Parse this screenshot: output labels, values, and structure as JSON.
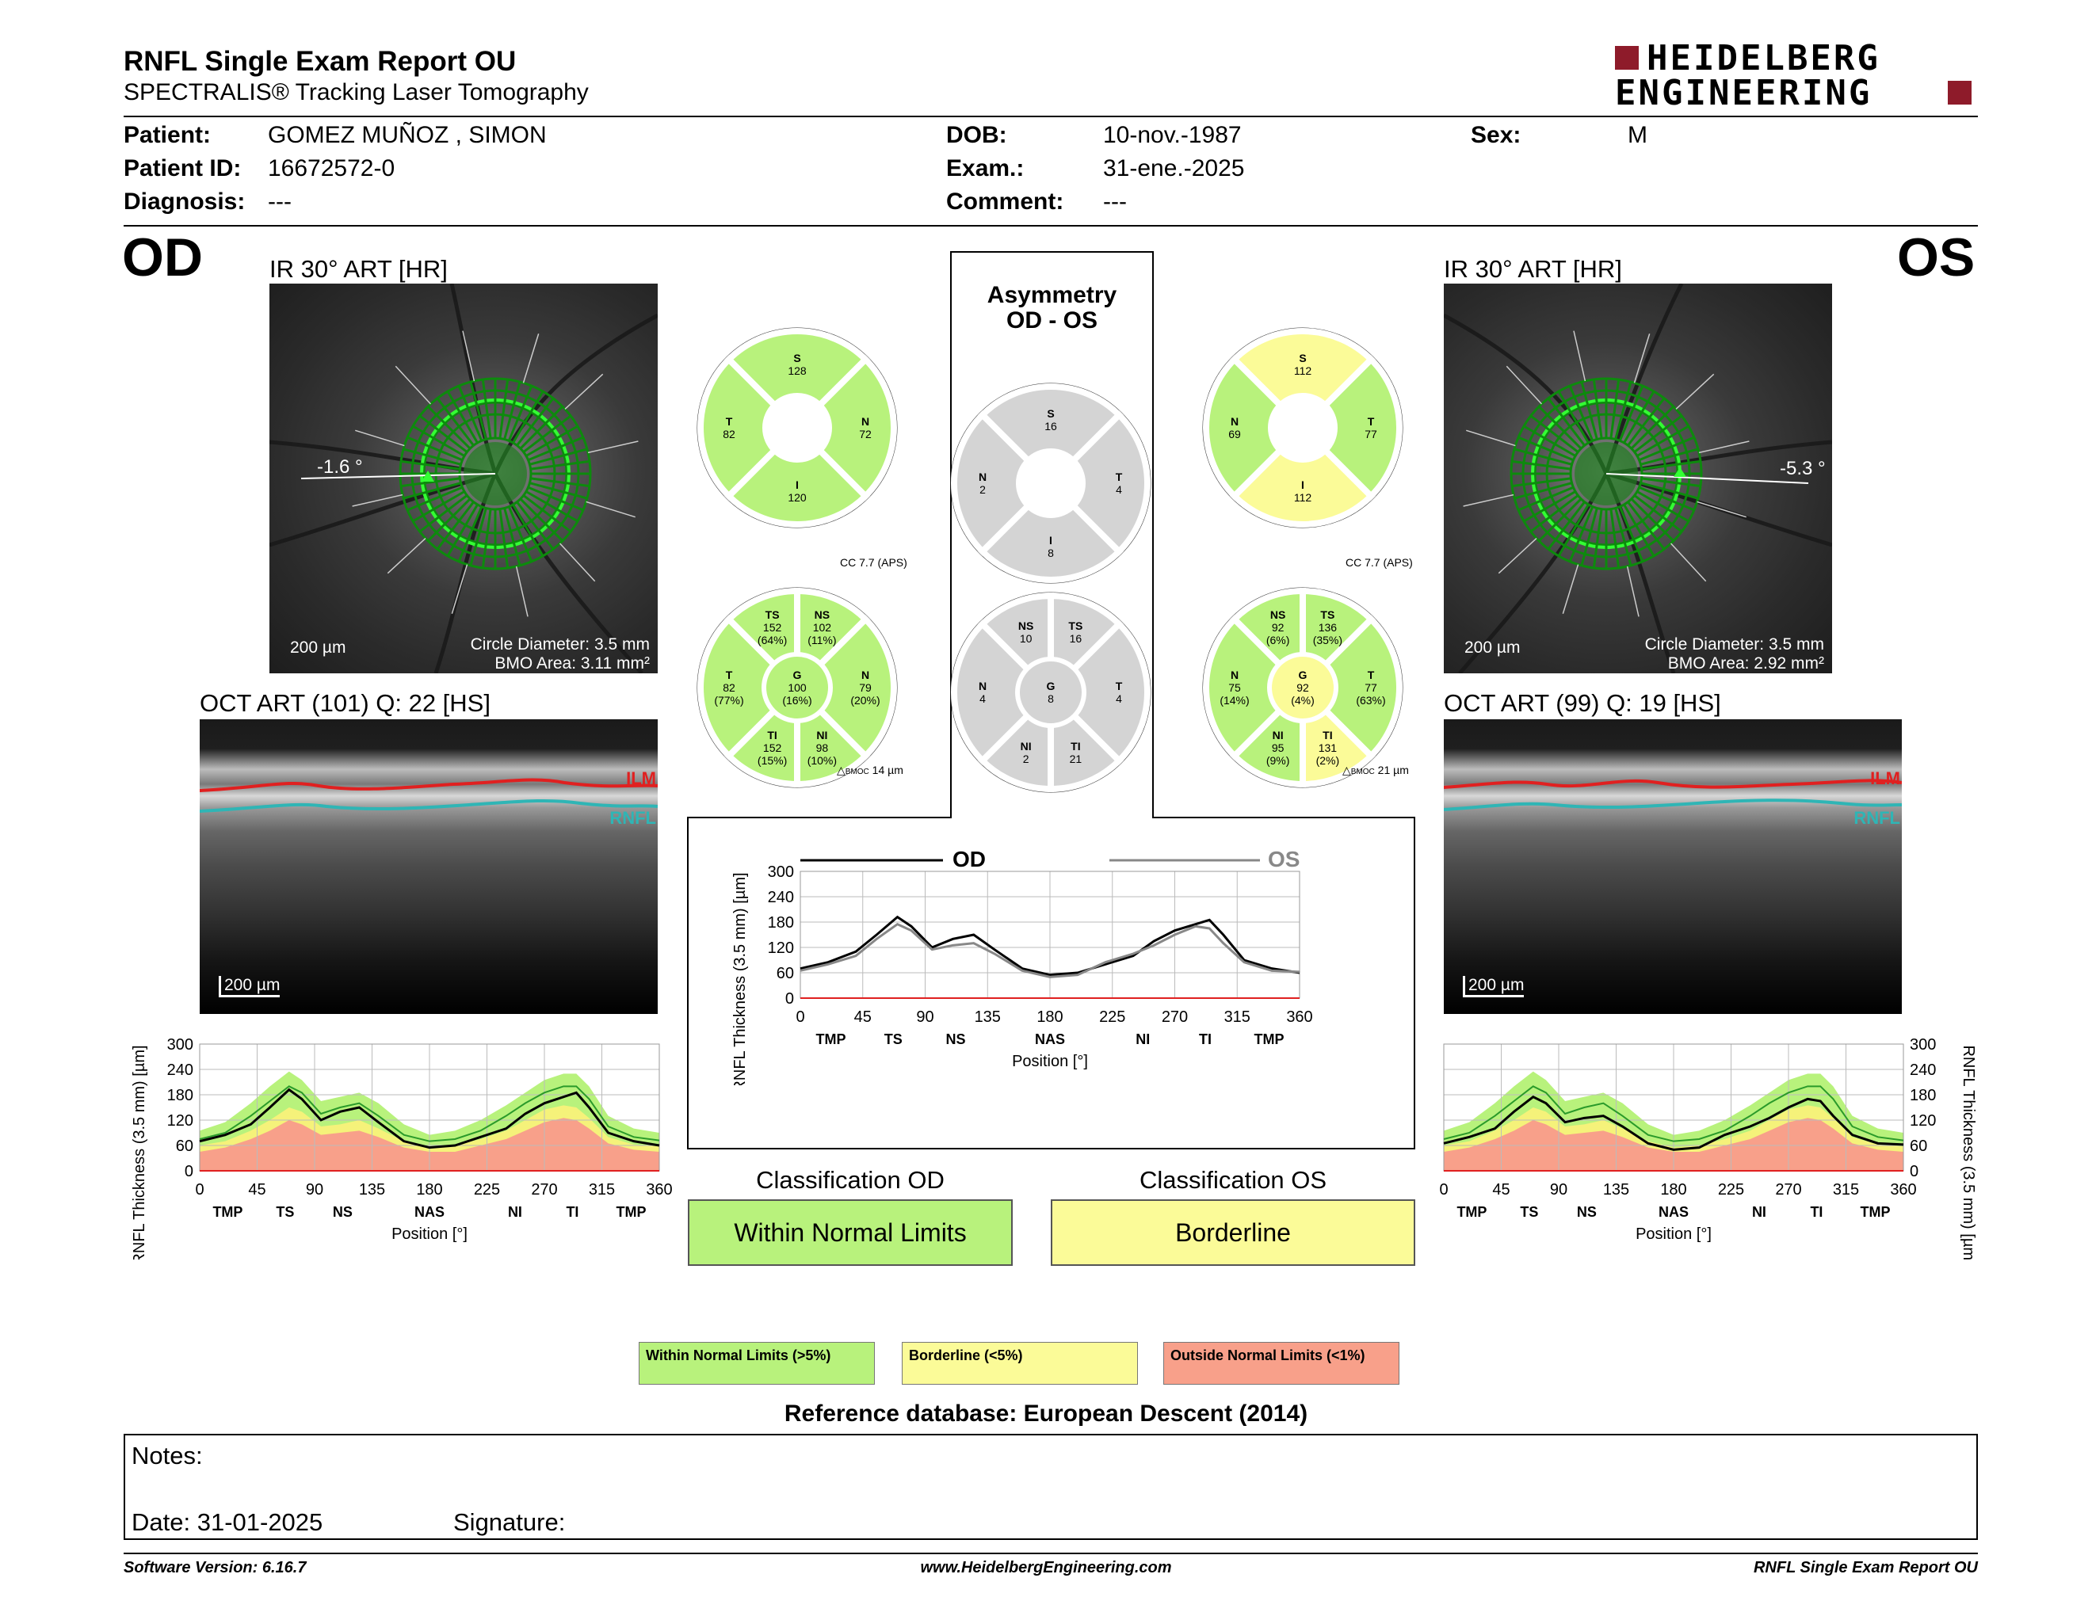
{
  "header": {
    "title": "RNFL Single Exam Report OU",
    "subtitle": "SPECTRALIS® Tracking Laser Tomography",
    "logo_line1": "HEIDELBERG",
    "logo_line2": "ENGINEERING"
  },
  "patient": {
    "patient_label": "Patient:",
    "patient_value": "GOMEZ MUÑOZ , SIMON",
    "id_label": "Patient ID:",
    "id_value": "16672572-0",
    "diag_label": "Diagnosis:",
    "diag_value": "---",
    "dob_label": "DOB:",
    "dob_value": "10-nov.-1987",
    "exam_label": "Exam.:",
    "exam_value": "31-ene.-2025",
    "comment_label": "Comment:",
    "comment_value": "---",
    "sex_label": "Sex:",
    "sex_value": "M"
  },
  "od": {
    "eye": "OD",
    "ir_title": "IR 30° ART [HR]",
    "angle": "-1.6 °",
    "scale": "200 µm",
    "circle_diameter": "Circle Diameter: 3.5 mm",
    "bmo_area": "BMO Area: 3.11 mm²",
    "oct_title": "OCT ART (101) Q: 22 [HS]",
    "oct_scale": "200 µm",
    "ilm": "ILM",
    "rnfl": "RNFL",
    "cc": "CC 7.7 (APS)",
    "bmoc": "14 µm",
    "sectors4": {
      "S": "128",
      "N": "72",
      "I": "120",
      "T": "82"
    },
    "sectors6": {
      "TS": "152",
      "TS_p": "(64%)",
      "NS": "102",
      "NS_p": "(11%)",
      "N": "79",
      "N_p": "(20%)",
      "NI": "98",
      "NI_p": "(10%)",
      "TI": "152",
      "TI_p": "(15%)",
      "T": "82",
      "T_p": "(77%)",
      "G": "100",
      "G_p": "(16%)"
    },
    "classification_label": "Classification OD",
    "classification": "Within Normal Limits"
  },
  "os": {
    "eye": "OS",
    "ir_title": "IR 30° ART [HR]",
    "angle": "-5.3 °",
    "scale": "200 µm",
    "circle_diameter": "Circle Diameter: 3.5 mm",
    "bmo_area": "BMO Area: 2.92 mm²",
    "oct_title": "OCT ART (99) Q: 19 [HS]",
    "oct_scale": "200 µm",
    "ilm": "ILM",
    "rnfl": "RNFL",
    "cc": "CC 7.7 (APS)",
    "bmoc": "21 µm",
    "sectors4": {
      "S": "112",
      "N": "69",
      "I": "112",
      "T": "77"
    },
    "sectors6": {
      "TS": "136",
      "TS_p": "(35%)",
      "NS": "92",
      "NS_p": "(6%)",
      "N": "75",
      "N_p": "(14%)",
      "NI": "95",
      "NI_p": "(9%)",
      "TI": "131",
      "TI_p": "(2%)",
      "T": "77",
      "T_p": "(63%)",
      "G": "92",
      "G_p": "(4%)"
    },
    "classification_label": "Classification OS",
    "classification": "Borderline"
  },
  "asym": {
    "title1": "Asymmetry",
    "title2": "OD - OS",
    "sectors4": {
      "S": "16",
      "N": "2",
      "T": "4",
      "I": "8"
    },
    "sectors6": {
      "NS": "10",
      "TS": "16",
      "N": "4",
      "G": "8",
      "T": "4",
      "NI": "2",
      "TI": "21"
    }
  },
  "sector_letters": {
    "S": "S",
    "N": "N",
    "I": "I",
    "T": "T",
    "TS": "TS",
    "NS": "NS",
    "NI": "NI",
    "TI": "TI",
    "G": "G",
    "bmoc_prefix": "BMOC"
  },
  "chart_common": {
    "ylabel": "RNFL Thickness (3.5 mm) [µm]",
    "xlabel": "Position [°]",
    "yticks": [
      0,
      60,
      120,
      180,
      240,
      300
    ],
    "xticks": [
      0,
      45,
      90,
      135,
      180,
      225,
      270,
      315,
      360
    ],
    "regions": [
      {
        "x": 22,
        "label": "TMP"
      },
      {
        "x": 67,
        "label": "TS"
      },
      {
        "x": 112,
        "label": "NS"
      },
      {
        "x": 180,
        "label": "NAS"
      },
      {
        "x": 247,
        "label": "NI"
      },
      {
        "x": 292,
        "label": "TI"
      },
      {
        "x": 338,
        "label": "TMP"
      }
    ]
  },
  "chart_data": [
    {
      "type": "line",
      "title": "",
      "xlabel": "Position [°]",
      "ylabel": "RNFL Thickness (3.5 mm) [µm]",
      "xlim": [
        0,
        360
      ],
      "ylim": [
        0,
        300
      ],
      "x": [
        0,
        20,
        40,
        55,
        70,
        80,
        95,
        110,
        125,
        140,
        160,
        180,
        200,
        220,
        240,
        255,
        270,
        285,
        295,
        305,
        320,
        340,
        360
      ],
      "series": [
        {
          "name": "OD",
          "values": [
            70,
            85,
            110,
            150,
            192,
            170,
            120,
            140,
            150,
            115,
            70,
            55,
            60,
            80,
            100,
            135,
            160,
            175,
            185,
            150,
            90,
            70,
            60
          ]
        }
      ],
      "band_green_upper": [
        95,
        115,
        160,
        200,
        235,
        215,
        165,
        175,
        185,
        160,
        110,
        85,
        95,
        120,
        155,
        185,
        215,
        230,
        230,
        200,
        130,
        100,
        90
      ],
      "band_yellow_upper": [
        60,
        70,
        95,
        120,
        150,
        140,
        105,
        110,
        120,
        100,
        70,
        55,
        60,
        75,
        95,
        120,
        145,
        155,
        150,
        125,
        80,
        62,
        58
      ],
      "band_red_upper": [
        45,
        55,
        75,
        95,
        120,
        110,
        85,
        90,
        95,
        80,
        55,
        45,
        45,
        60,
        75,
        95,
        115,
        125,
        120,
        100,
        65,
        50,
        45
      ],
      "mean": [
        75,
        90,
        130,
        165,
        200,
        185,
        135,
        150,
        160,
        130,
        85,
        70,
        75,
        95,
        130,
        160,
        185,
        200,
        200,
        170,
        105,
        80,
        72
      ]
    },
    {
      "type": "line",
      "title": "",
      "xlabel": "Position [°]",
      "ylabel": "RNFL Thickness (3.5 mm) [µm]",
      "xlim": [
        0,
        360
      ],
      "ylim": [
        0,
        300
      ],
      "x": [
        0,
        20,
        40,
        55,
        70,
        80,
        95,
        110,
        125,
        140,
        160,
        180,
        200,
        220,
        240,
        255,
        270,
        285,
        295,
        305,
        320,
        340,
        360
      ],
      "series": [
        {
          "name": "OD",
          "values": [
            70,
            85,
            110,
            150,
            192,
            170,
            120,
            140,
            150,
            115,
            70,
            55,
            60,
            80,
            100,
            135,
            160,
            175,
            185,
            150,
            90,
            70,
            60
          ]
        },
        {
          "name": "OS",
          "values": [
            65,
            80,
            100,
            140,
            175,
            160,
            115,
            125,
            130,
            105,
            65,
            50,
            55,
            85,
            105,
            125,
            150,
            170,
            165,
            130,
            85,
            65,
            62
          ]
        }
      ]
    },
    {
      "type": "line",
      "title": "",
      "xlabel": "Position [°]",
      "ylabel": "RNFL Thickness (3.5 mm) [µm]",
      "xlim": [
        0,
        360
      ],
      "ylim": [
        0,
        300
      ],
      "x": [
        0,
        20,
        40,
        55,
        70,
        80,
        95,
        110,
        125,
        140,
        160,
        180,
        200,
        220,
        240,
        255,
        270,
        285,
        295,
        305,
        320,
        340,
        360
      ],
      "series": [
        {
          "name": "OS",
          "values": [
            65,
            80,
            100,
            140,
            175,
            160,
            115,
            125,
            130,
            105,
            65,
            50,
            55,
            85,
            105,
            125,
            150,
            170,
            165,
            130,
            85,
            65,
            62
          ]
        }
      ],
      "band_green_upper": [
        95,
        115,
        160,
        200,
        235,
        215,
        165,
        175,
        185,
        160,
        110,
        85,
        95,
        120,
        155,
        185,
        215,
        230,
        230,
        200,
        130,
        100,
        90
      ],
      "band_yellow_upper": [
        60,
        70,
        95,
        120,
        150,
        140,
        105,
        110,
        120,
        100,
        70,
        55,
        60,
        75,
        95,
        120,
        145,
        155,
        150,
        125,
        80,
        62,
        58
      ],
      "band_red_upper": [
        45,
        55,
        75,
        95,
        120,
        110,
        85,
        90,
        95,
        80,
        55,
        45,
        45,
        60,
        75,
        95,
        115,
        125,
        120,
        100,
        65,
        50,
        45
      ],
      "mean": [
        75,
        90,
        130,
        165,
        200,
        185,
        135,
        150,
        160,
        130,
        85,
        70,
        75,
        95,
        130,
        160,
        185,
        200,
        200,
        170,
        105,
        80,
        72
      ]
    }
  ],
  "legend": {
    "wnl": "Within Normal Limits (>5%)",
    "bl": "Borderline (<5%)",
    "onl": "Outside Normal Limits (<1%)"
  },
  "reference": "Reference database: European Descent (2014)",
  "notes": {
    "label": "Notes:",
    "date": "Date: 31-01-2025",
    "signature": "Signature:"
  },
  "footer": {
    "version": "Software Version: 6.16.7",
    "url": "www.HeidelbergEngineering.com",
    "report": "RNFL Single Exam Report OU"
  },
  "colors": {
    "green": "#b8f27c",
    "yellow": "#fbfb98",
    "red": "#f8a08a",
    "gray": "#d4d4d4",
    "ilm": "#e02020",
    "rnfl": "#2fb5b5"
  }
}
